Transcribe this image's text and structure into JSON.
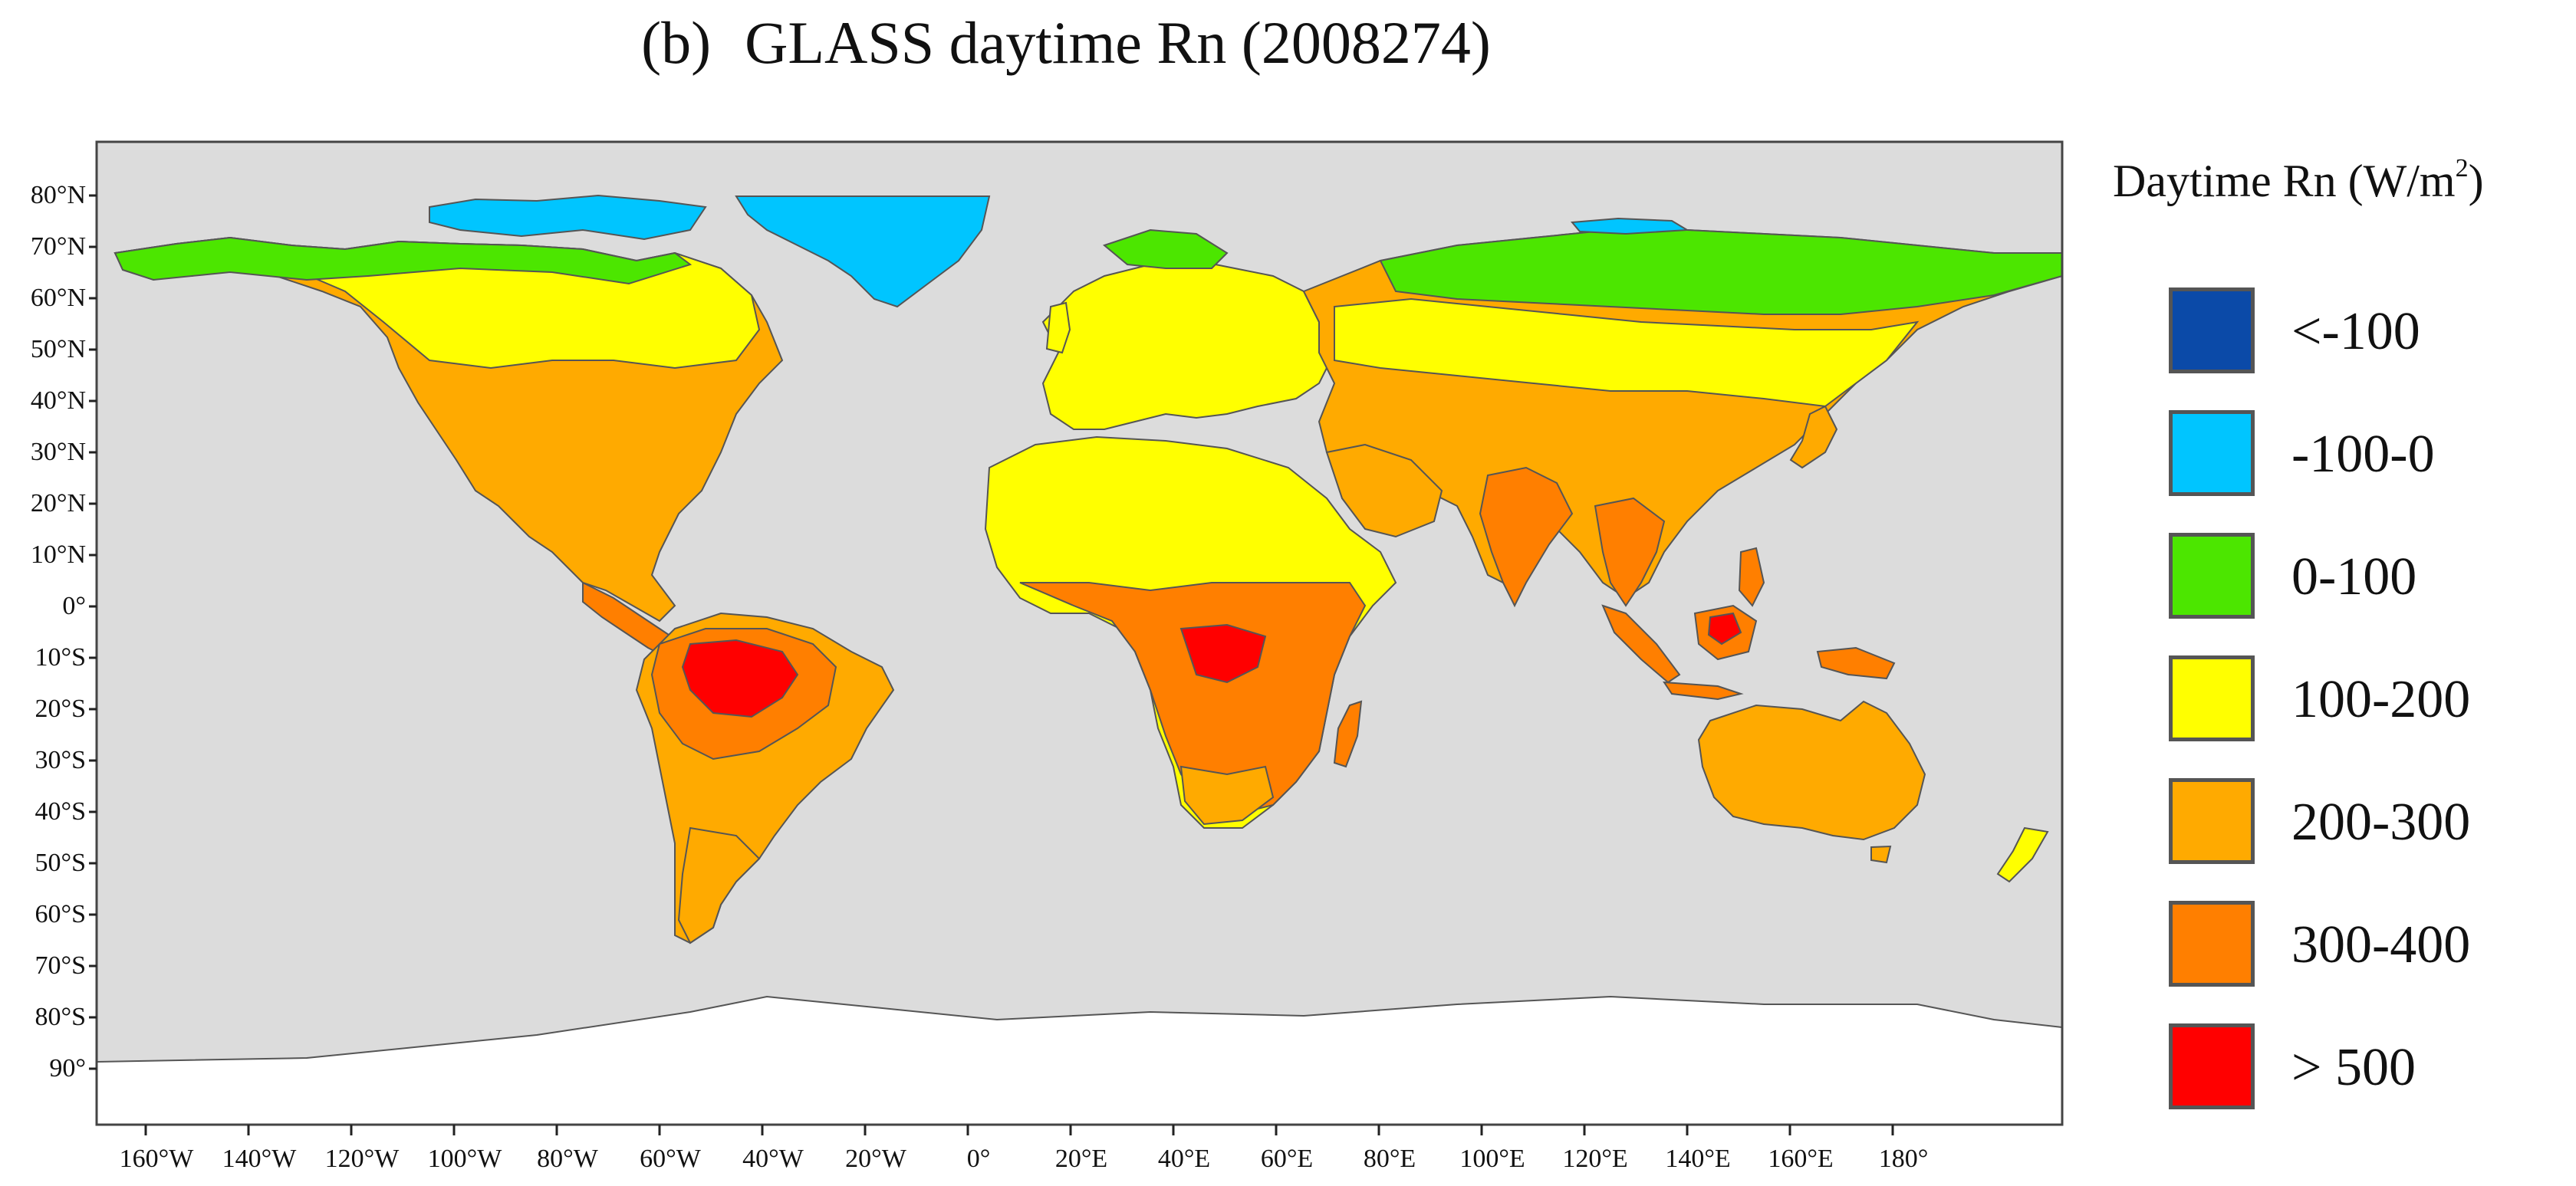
{
  "figure": {
    "panel_tag": "(b)",
    "title": "GLASS daytime Rn (2008274)"
  },
  "map": {
    "ocean_color": "#dcdcdc",
    "antarctica_color": "#ffffff",
    "coast_color": "#555555",
    "border_color": "#4a4a4a",
    "extent": {
      "lon": [
        -180,
        180
      ],
      "lat": [
        -90,
        90
      ]
    },
    "lat_ticks": [
      "80°N",
      "70°N",
      "60°N",
      "50°N",
      "40°N",
      "30°N",
      "20°N",
      "10°N",
      "0°",
      "10°S",
      "20°S",
      "30°S",
      "40°S",
      "50°S",
      "60°S",
      "70°S",
      "80°S",
      "90°"
    ],
    "lon_ticks": [
      "160°W",
      "140°W",
      "120°W",
      "100°W",
      "80°W",
      "60°W",
      "40°W",
      "20°W",
      "0°",
      "20°E",
      "40°E",
      "60°E",
      "80°E",
      "100°E",
      "120°E",
      "140°E",
      "160°E",
      "180°"
    ]
  },
  "legend": {
    "title": "Daytime Rn (W/m",
    "title_sup": "2",
    "title_close": ")",
    "items": [
      {
        "label": "<-100",
        "color": "#0b4aa8"
      },
      {
        "label": "-100-0",
        "color": "#00c5ff"
      },
      {
        "label": "0-100",
        "color": "#4ce600"
      },
      {
        "label": "100-200",
        "color": "#ffff00"
      },
      {
        "label": "200-300",
        "color": "#ffaa00"
      },
      {
        "label": "300-400",
        "color": "#ff7f00"
      },
      {
        "label": "> 500",
        "color": "#ff0000"
      }
    ]
  }
}
